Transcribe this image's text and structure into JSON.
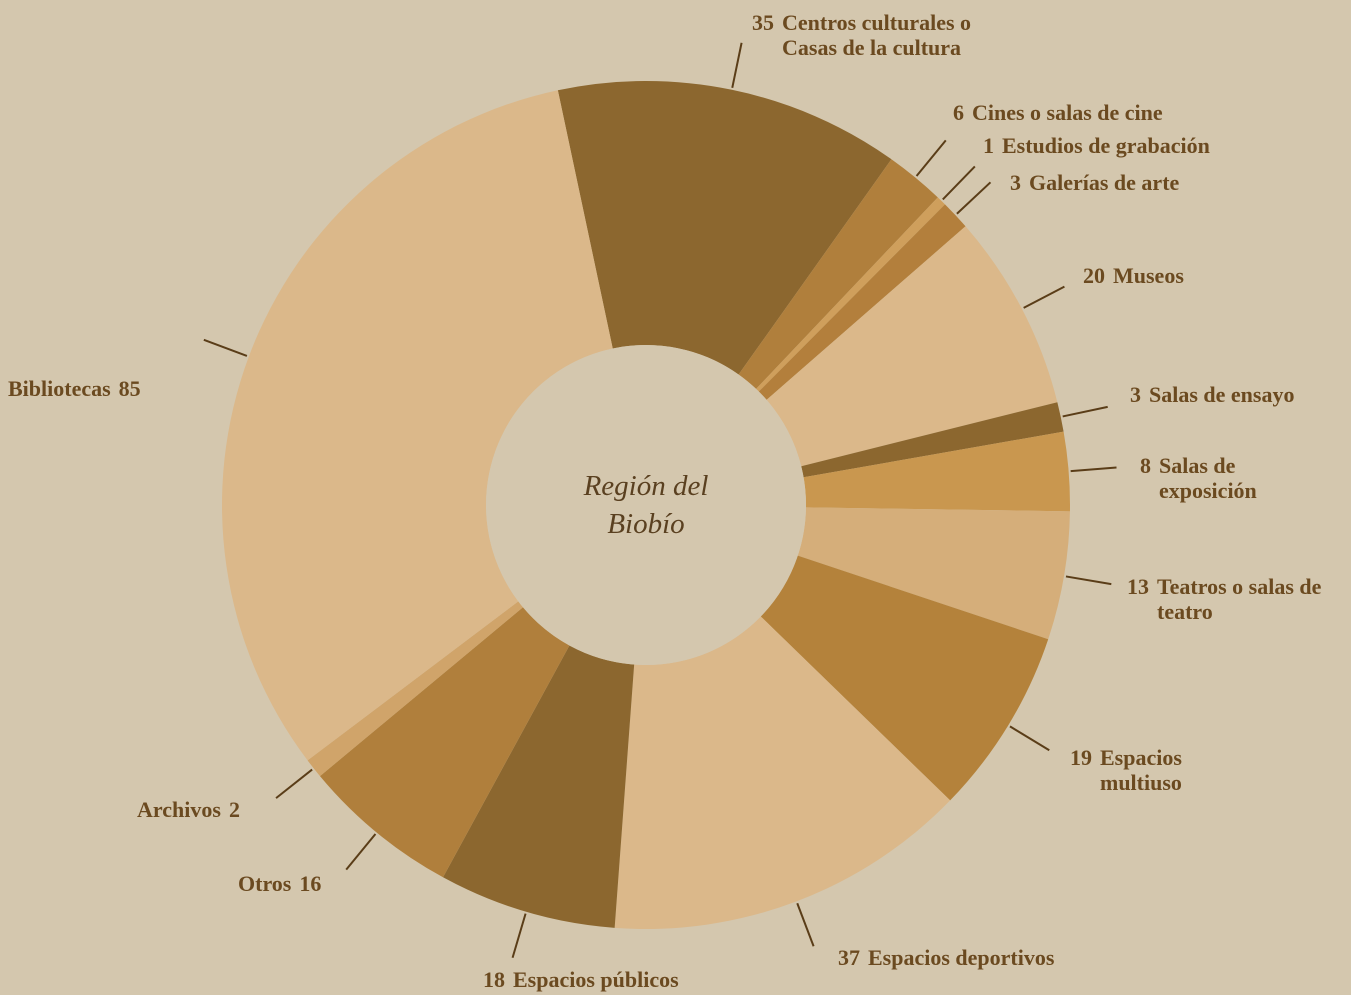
{
  "chart_data": {
    "type": "donut",
    "center_label": "Región del Biobío",
    "categories": [
      "Centros culturales o Casas de la cultura",
      "Cines o salas de cine",
      "Estudios de grabación",
      "Galerías de arte",
      "Museos",
      "Salas de ensayo",
      "Salas de exposición",
      "Teatros o salas de teatro",
      "Espacios multiuso",
      "Espacios deportivos",
      "Espacios públicos",
      "Otros",
      "Archivos",
      "Bibliotecas"
    ],
    "values": [
      35,
      6,
      1,
      3,
      20,
      3,
      8,
      13,
      19,
      37,
      18,
      16,
      2,
      85
    ],
    "colors": [
      "#8c672f",
      "#b07f3c",
      "#cf9f5c",
      "#b37f3c",
      "#dbb88a",
      "#8c672f",
      "#c9974f",
      "#d5ae7a",
      "#b4823b",
      "#dbb88a",
      "#8c672f",
      "#b07f3c",
      "#d0a46a",
      "#dbb88a"
    ]
  }
}
